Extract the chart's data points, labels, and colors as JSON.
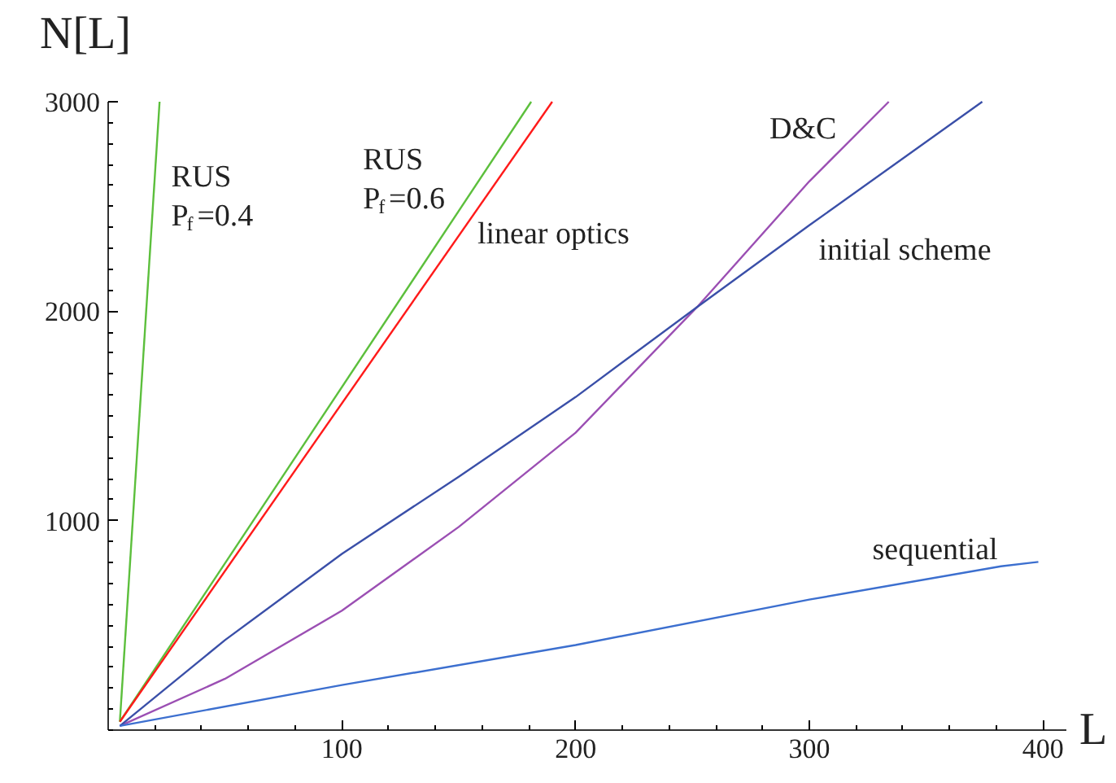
{
  "chart_data": {
    "type": "line",
    "xlabel": "L",
    "ylabel": "N[L]",
    "xlim": [
      0,
      410
    ],
    "ylim": [
      0,
      3000
    ],
    "xticks": [
      100,
      200,
      300,
      400
    ],
    "yticks": [
      1000,
      2000,
      3000
    ],
    "grid": false,
    "line_style": "solid",
    "series": [
      {
        "name": "RUS P$_{f}$=0.4",
        "color": "#5cbf3c",
        "x": [
          5,
          22
        ],
        "values": [
          40,
          3000
        ]
      },
      {
        "name": "RUS P$_{f}$=0.6",
        "color": "#5cbf3c",
        "x": [
          5,
          181
        ],
        "values": [
          40,
          3000
        ]
      },
      {
        "name": "linear optics",
        "color": "#ff1a1a",
        "x": [
          5,
          190
        ],
        "values": [
          40,
          3000
        ]
      },
      {
        "name": "D&C",
        "color": "#9b4fb3",
        "x": [
          5,
          50,
          100,
          150,
          200,
          252,
          300,
          334
        ],
        "values": [
          20,
          245,
          570,
          970,
          1420,
          2020,
          2620,
          3000
        ]
      },
      {
        "name": "initial scheme",
        "color": "#3a4fa8",
        "x": [
          5,
          50,
          100,
          150,
          200,
          252,
          300,
          374
        ],
        "values": [
          20,
          430,
          841,
          1210,
          1590,
          2020,
          2410,
          3000
        ]
      },
      {
        "name": "sequential",
        "color": "#3c6fcf",
        "x": [
          5,
          100,
          200,
          300,
          382,
          398
        ],
        "values": [
          20,
          215,
          406,
          623,
          782,
          803
        ]
      }
    ]
  }
}
